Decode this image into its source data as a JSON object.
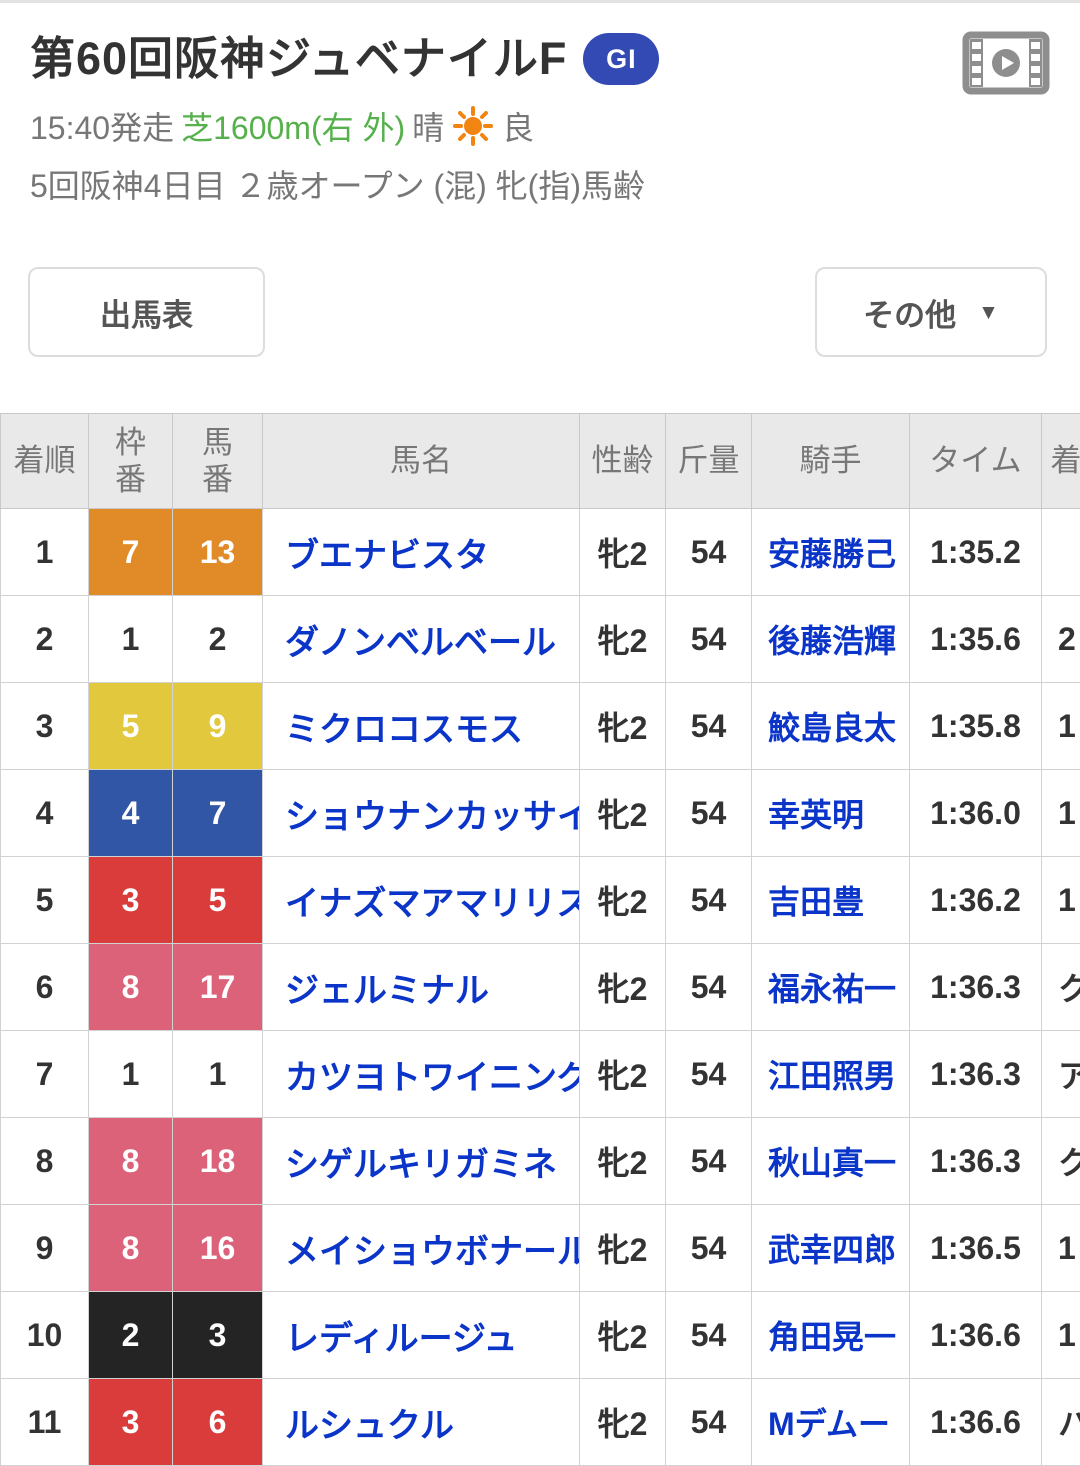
{
  "header": {
    "title": "第60回阪神ジュベナイルF",
    "grade_badge": "GI",
    "info": {
      "start_time": "15:40発走",
      "course": "芝1600m(右 外)",
      "weather_label": "晴",
      "going": "良",
      "meeting": "5回阪神4日目 ２歳オープン (混) 牝(指)馬齢"
    }
  },
  "toolbar": {
    "shutsuba_label": "出馬表",
    "sonota_label": "その他",
    "dropdown_icon": "▼"
  },
  "table": {
    "columns": [
      "着順",
      "枠\n番",
      "馬\n番",
      "馬名",
      "性齢",
      "斤量",
      "騎手",
      "タイム",
      "着差"
    ],
    "rows": [
      {
        "rank": "1",
        "waku": "7",
        "num": "13",
        "horse": "ブエナビスタ",
        "sexage": "牝2",
        "weight": "54",
        "jockey": "安藤勝己",
        "time": "1:35.2",
        "margin": "",
        "waku_bg": "#e08a28",
        "waku_fg": "#ffffff"
      },
      {
        "rank": "2",
        "waku": "1",
        "num": "2",
        "horse": "ダノンベルベール",
        "sexage": "牝2",
        "weight": "54",
        "jockey": "後藤浩輝",
        "time": "1:35.6",
        "margin": "2",
        "waku_bg": "#ffffff",
        "waku_fg": "#333333"
      },
      {
        "rank": "3",
        "waku": "5",
        "num": "9",
        "horse": "ミクロコスモス",
        "sexage": "牝2",
        "weight": "54",
        "jockey": "鮫島良太",
        "time": "1:35.8",
        "margin": "1",
        "waku_bg": "#e2c83c",
        "waku_fg": "#ffffff"
      },
      {
        "rank": "4",
        "waku": "4",
        "num": "7",
        "horse": "ショウナンカッサイ",
        "sexage": "牝2",
        "weight": "54",
        "jockey": "幸英明",
        "time": "1:36.0",
        "margin": "1",
        "waku_bg": "#3156a6",
        "waku_fg": "#ffffff"
      },
      {
        "rank": "5",
        "waku": "3",
        "num": "5",
        "horse": "イナズマアマリリス",
        "sexage": "牝2",
        "weight": "54",
        "jockey": "吉田豊",
        "time": "1:36.2",
        "margin": "1",
        "waku_bg": "#da3c3c",
        "waku_fg": "#ffffff"
      },
      {
        "rank": "6",
        "waku": "8",
        "num": "17",
        "horse": "ジェルミナル",
        "sexage": "牝2",
        "weight": "54",
        "jockey": "福永祐一",
        "time": "1:36.3",
        "margin": "ク",
        "waku_bg": "#db6279",
        "waku_fg": "#ffffff"
      },
      {
        "rank": "7",
        "waku": "1",
        "num": "1",
        "horse": "カツヨトワイニング",
        "sexage": "牝2",
        "weight": "54",
        "jockey": "江田照男",
        "time": "1:36.3",
        "margin": "ア",
        "waku_bg": "#ffffff",
        "waku_fg": "#333333"
      },
      {
        "rank": "8",
        "waku": "8",
        "num": "18",
        "horse": "シゲルキリガミネ",
        "sexage": "牝2",
        "weight": "54",
        "jockey": "秋山真一",
        "time": "1:36.3",
        "margin": "ク",
        "waku_bg": "#db6279",
        "waku_fg": "#ffffff"
      },
      {
        "rank": "9",
        "waku": "8",
        "num": "16",
        "horse": "メイショウボナール",
        "sexage": "牝2",
        "weight": "54",
        "jockey": "武幸四郎",
        "time": "1:36.5",
        "margin": "1",
        "waku_bg": "#db6279",
        "waku_fg": "#ffffff"
      },
      {
        "rank": "10",
        "waku": "2",
        "num": "3",
        "horse": "レディルージュ",
        "sexage": "牝2",
        "weight": "54",
        "jockey": "角田晃一",
        "time": "1:36.6",
        "margin": "1",
        "waku_bg": "#242424",
        "waku_fg": "#ffffff"
      },
      {
        "rank": "11",
        "waku": "3",
        "num": "6",
        "horse": "ルシュクル",
        "sexage": "牝2",
        "weight": "54",
        "jockey": "Mデムー",
        "time": "1:36.6",
        "margin": "ハ",
        "waku_bg": "#da3c3c",
        "waku_fg": "#ffffff"
      }
    ]
  },
  "colors": {
    "link_blue": "#0b34c9",
    "grade_badge_blue": "#3349b4",
    "course_green": "#56b14c",
    "sun_orange": "#f28411",
    "header_gray": "#e9e9e9"
  }
}
